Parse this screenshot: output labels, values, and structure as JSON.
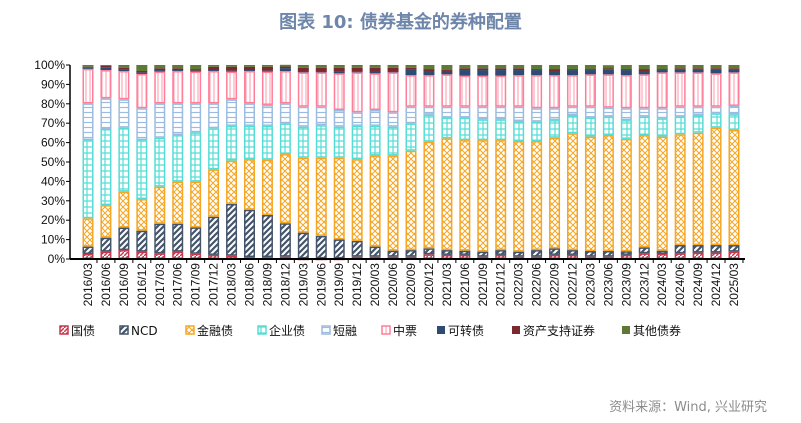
{
  "chart_data": {
    "type": "bar",
    "stacked": true,
    "title": "图表 10: 债券基金的券种配置",
    "source": "资料来源：Wind, 兴业研究",
    "xlabel": "",
    "ylabel": "",
    "ylim": [
      0,
      100
    ],
    "yticks": [
      "0%",
      "10%",
      "20%",
      "30%",
      "40%",
      "50%",
      "60%",
      "70%",
      "80%",
      "90%",
      "100%"
    ],
    "grid": false,
    "legend_position": "bottom",
    "categories": [
      "2016/03",
      "2016/06",
      "2016/09",
      "2016/12",
      "2017/03",
      "2017/06",
      "2017/09",
      "2017/12",
      "2018/03",
      "2018/06",
      "2018/09",
      "2018/12",
      "2019/03",
      "2019/06",
      "2019/09",
      "2019/12",
      "2020/03",
      "2020/06",
      "2020/09",
      "2020/12",
      "2021/03",
      "2021/06",
      "2021/09",
      "2021/12",
      "2022/03",
      "2022/06",
      "2022/09",
      "2022/12",
      "2023/03",
      "2023/06",
      "2023/09",
      "2023/12",
      "2024/03",
      "2024/06",
      "2024/09",
      "2024/12",
      "2025/03"
    ],
    "series": [
      {
        "name": "国债",
        "color": "#C9394E",
        "values": [
          2.6,
          3.8,
          4.6,
          3.8,
          2.9,
          3.8,
          2.7,
          2.1,
          1.7,
          1.0,
          1.0,
          1.2,
          0.3,
          0.3,
          0.3,
          1.2,
          1.2,
          1.2,
          1.2,
          2.4,
          2.1,
          2.1,
          1.2,
          2.1,
          1.2,
          1.2,
          2.1,
          2.1,
          1.2,
          1.2,
          2.1,
          2.9,
          2.6,
          2.9,
          3.3,
          3.3,
          3.8
        ]
      },
      {
        "name": "NCD",
        "color": "#44546A",
        "values": [
          3.8,
          7.2,
          11.6,
          10.8,
          15.3,
          14.4,
          13.6,
          19.7,
          26.7,
          24.4,
          21.7,
          17.2,
          13.3,
          11.6,
          9.8,
          8.1,
          5.2,
          3.1,
          3.4,
          3.1,
          2.5,
          2.2,
          2.6,
          2.5,
          2.6,
          3.4,
          3.4,
          2.5,
          2.9,
          2.9,
          1.9,
          3.1,
          1.7,
          4.3,
          3.9,
          3.9,
          3.4
        ]
      },
      {
        "name": "金融债",
        "color": "#F5A623",
        "values": [
          14.6,
          16.8,
          18.5,
          16.3,
          19.1,
          21.7,
          23.6,
          24.4,
          22.3,
          26.1,
          28.5,
          35.7,
          38.6,
          40.3,
          42.1,
          42.2,
          46.9,
          49.0,
          51.2,
          55.0,
          57.6,
          57.0,
          57.5,
          56.7,
          57.0,
          56.2,
          57.0,
          60.2,
          59.0,
          59.8,
          57.9,
          57.9,
          58.8,
          57.1,
          57.9,
          60.5,
          59.3
        ]
      },
      {
        "name": "企业债",
        "color": "#55DDD5",
        "values": [
          40.3,
          39.2,
          33.0,
          30.4,
          25.2,
          24.0,
          25.4,
          21.2,
          17.9,
          17.1,
          17.4,
          15.8,
          16.0,
          16.8,
          16.0,
          17.1,
          15.3,
          14.9,
          14.1,
          13.9,
          10.7,
          11.6,
          10.7,
          10.7,
          10.3,
          10.0,
          9.1,
          9.4,
          9.8,
          9.5,
          9.7,
          9.5,
          9.4,
          9.1,
          9.1,
          7.4,
          8.1
        ]
      },
      {
        "name": "短融",
        "color": "#9BBCE0",
        "values": [
          18.9,
          15.8,
          14.6,
          16.4,
          17.7,
          16.3,
          14.9,
          12.8,
          13.7,
          11.6,
          10.8,
          10.3,
          10.3,
          9.5,
          8.6,
          7.0,
          8.2,
          7.4,
          8.6,
          4.1,
          5.6,
          5.6,
          6.5,
          6.5,
          7.4,
          6.9,
          6.1,
          4.3,
          5.6,
          4.6,
          6.1,
          4.3,
          5.2,
          5.1,
          4.3,
          3.4,
          4.3
        ]
      },
      {
        "name": "中票",
        "color": "#FF7F9A",
        "values": [
          17.8,
          14.6,
          14.6,
          17.7,
          16.4,
          16.7,
          16.4,
          16.7,
          14.3,
          16.7,
          17.2,
          16.7,
          17.7,
          17.7,
          18.9,
          20.6,
          18.9,
          20.6,
          16.3,
          16.3,
          16.7,
          16.0,
          16.0,
          16.0,
          16.3,
          17.1,
          17.1,
          16.3,
          16.7,
          17.2,
          17.1,
          17.5,
          18.5,
          17.7,
          17.7,
          17.2,
          17.3
        ]
      },
      {
        "name": "可转债",
        "color": "#2E4B74",
        "values": [
          0.6,
          1.4,
          1.0,
          0.8,
          0.8,
          0.5,
          0.5,
          0.5,
          0.5,
          0.5,
          0.5,
          1.5,
          0.7,
          0.7,
          1.0,
          0.5,
          1.2,
          0.7,
          3.1,
          2.1,
          1.7,
          2.9,
          2.9,
          2.9,
          2.6,
          2.6,
          2.1,
          2.6,
          2.2,
          2.6,
          2.6,
          1.7,
          1.2,
          1.7,
          1.7,
          2.2,
          1.7
        ]
      },
      {
        "name": "资产支持证券",
        "color": "#7A2A2E",
        "values": [
          0.5,
          0.7,
          0.7,
          0.7,
          0.9,
          0.9,
          0.8,
          1.7,
          2.0,
          1.7,
          2.0,
          0.8,
          1.7,
          1.7,
          1.9,
          1.9,
          1.7,
          1.7,
          0.7,
          1.0,
          0.5,
          0.9,
          0.9,
          0.9,
          0.9,
          0.5,
          1.0,
          0.5,
          0.5,
          0.4,
          0.5,
          1.0,
          0.5,
          0.4,
          0.4,
          0.4,
          0.4
        ]
      },
      {
        "name": "其他债券",
        "color": "#5E7A35",
        "values": [
          0.9,
          0.5,
          1.4,
          3.1,
          1.7,
          1.7,
          2.1,
          0.9,
          0.9,
          0.9,
          0.9,
          0.9,
          1.4,
          1.4,
          1.4,
          1.4,
          1.4,
          1.4,
          1.4,
          2.1,
          2.6,
          1.7,
          1.7,
          1.7,
          1.7,
          2.1,
          2.1,
          2.1,
          2.1,
          1.7,
          2.1,
          2.1,
          2.1,
          1.7,
          1.7,
          1.7,
          1.7
        ]
      }
    ]
  }
}
